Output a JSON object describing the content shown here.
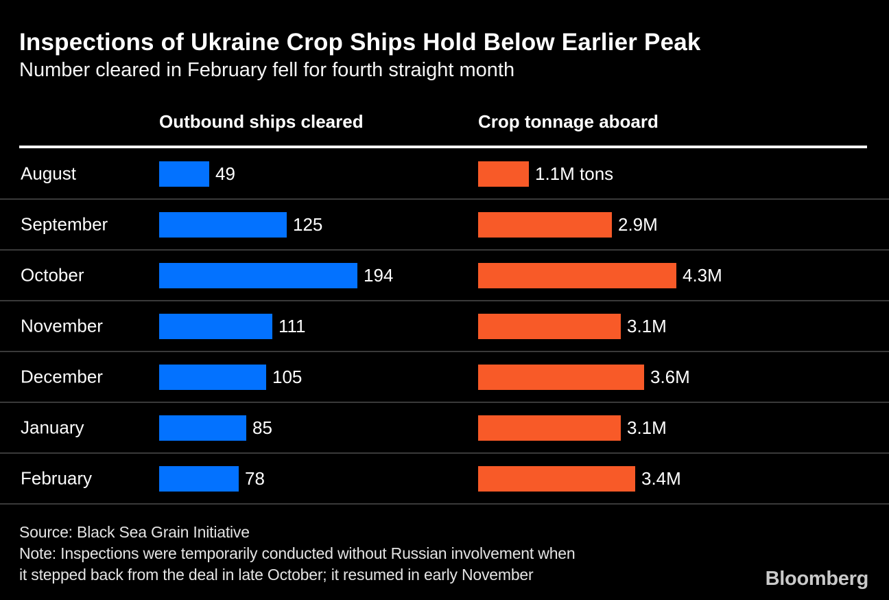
{
  "title": "Inspections of Ukraine Crop Ships Hold Below Earlier Peak",
  "subtitle": "Number cleared in February fell for fourth straight month",
  "columns": {
    "ships_header": "Outbound ships cleared",
    "tonnage_header": "Crop tonnage aboard"
  },
  "chart_data": {
    "type": "bar",
    "orientation": "horizontal",
    "grid": "row-dividers",
    "categories": [
      "August",
      "September",
      "October",
      "November",
      "December",
      "January",
      "February"
    ],
    "series": [
      {
        "name": "Outbound ships cleared",
        "color": "#0372ff",
        "values": [
          49,
          125,
          194,
          111,
          105,
          85,
          78
        ],
        "value_labels": [
          "49",
          "125",
          "194",
          "111",
          "105",
          "85",
          "78"
        ],
        "xlim": [
          0,
          194
        ]
      },
      {
        "name": "Crop tonnage aboard",
        "color": "#f85a28",
        "values": [
          1.1,
          2.9,
          4.3,
          3.1,
          3.6,
          3.1,
          3.4
        ],
        "value_labels": [
          "1.1M tons",
          "2.9M",
          "4.3M",
          "3.1M",
          "3.6M",
          "3.1M",
          "3.4M"
        ],
        "unit": "million tons",
        "xlim": [
          0,
          4.3
        ]
      }
    ]
  },
  "footer": {
    "source": "Source: Black Sea Grain Initiative",
    "note_line1": "Note: Inspections were temporarily conducted without Russian involvement when",
    "note_line2": "it stepped back from the deal in late October; it resumed in early November"
  },
  "branding": {
    "logo": "Bloomberg"
  },
  "colors": {
    "background": "#000000",
    "ships_bar": "#0372ff",
    "tonnage_bar": "#f85a28",
    "divider": "#3a3a3a",
    "header_rule": "#ffffff",
    "text": "#ffffff"
  }
}
